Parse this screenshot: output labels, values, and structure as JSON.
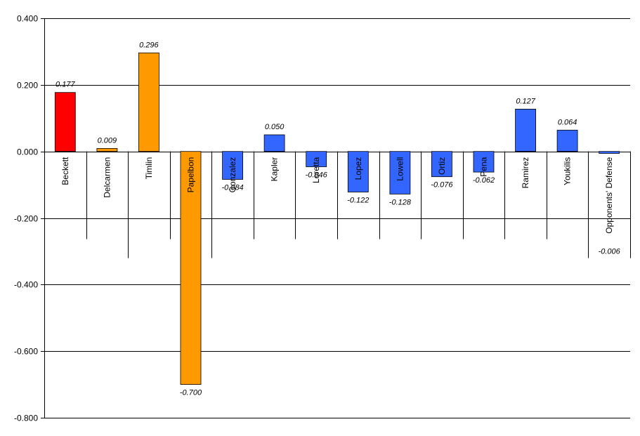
{
  "chart_data": {
    "type": "bar",
    "categories": [
      "Beckett",
      "Delcarmen",
      "Timlin",
      "Papelbon",
      "Gonzalez",
      "Kapler",
      "Loretta",
      "Lopez",
      "Lowell",
      "Ortiz",
      "Pena",
      "Ramirez",
      "Youkilis",
      "Opponents' Defense"
    ],
    "values": [
      0.177,
      0.009,
      0.296,
      -0.7,
      -0.084,
      0.05,
      -0.046,
      -0.122,
      -0.128,
      -0.076,
      -0.062,
      0.127,
      0.064,
      -0.006
    ],
    "value_labels": [
      "0.177",
      "0.009",
      "0.296",
      "-0.700",
      "-0.084",
      "0.050",
      "-0.046",
      "-0.122",
      "-0.128",
      "-0.076",
      "-0.062",
      "0.127",
      "0.064",
      "-0.006"
    ],
    "colors": [
      "#ff0000",
      "#ff9900",
      "#ff9900",
      "#ff9900",
      "#3366ff",
      "#3366ff",
      "#3366ff",
      "#3366ff",
      "#3366ff",
      "#3366ff",
      "#3366ff",
      "#3366ff",
      "#3366ff",
      "#3366ff"
    ],
    "ylim": [
      -0.8,
      0.4
    ],
    "yticks": [
      0.4,
      0.2,
      0.0,
      -0.2,
      -0.4,
      -0.6,
      -0.8
    ],
    "ytick_labels": [
      "0.400",
      "0.200",
      "0.000",
      "-0.200",
      "-0.400",
      "-0.600",
      "-0.800"
    ],
    "grid": true,
    "title": "",
    "xlabel": "",
    "ylabel": ""
  }
}
